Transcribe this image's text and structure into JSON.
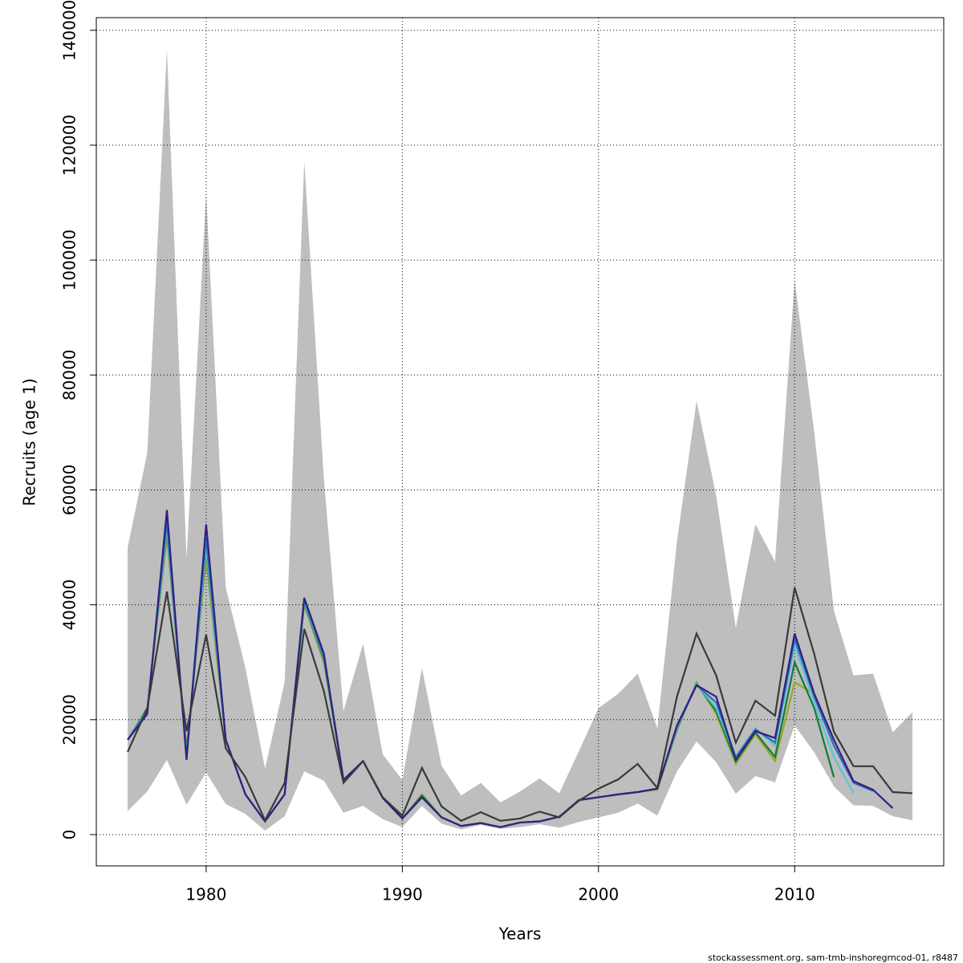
{
  "chart_data": {
    "type": "line",
    "xlabel": "Years",
    "ylabel": "Recruits (age 1)",
    "footer": "stockassessment.org, sam-tmb-inshoregrncod-01, r8487",
    "x": [
      1976,
      1977,
      1978,
      1979,
      1980,
      1981,
      1982,
      1983,
      1984,
      1985,
      1986,
      1987,
      1988,
      1989,
      1990,
      1991,
      1992,
      1993,
      1994,
      1995,
      1996,
      1997,
      1998,
      1999,
      2000,
      2001,
      2002,
      2003,
      2004,
      2005,
      2006,
      2007,
      2008,
      2009,
      2010,
      2011,
      2012,
      2013,
      2014,
      2015,
      2016
    ],
    "xlim": [
      1974.4,
      2017.6
    ],
    "xticks": [
      1980,
      1990,
      2000,
      2010
    ],
    "ylim": [
      -5450,
      142200
    ],
    "yticks": [
      0,
      20000,
      40000,
      60000,
      80000,
      100000,
      120000,
      140000
    ],
    "grid": true,
    "band": {
      "color": "#bebebe",
      "upper": [
        50000,
        66500,
        136700,
        48000,
        111500,
        43000,
        29000,
        11500,
        26500,
        117300,
        62000,
        21500,
        33200,
        14000,
        9500,
        29000,
        12000,
        6800,
        9000,
        5600,
        7500,
        9800,
        7200,
        14500,
        22000,
        24500,
        28000,
        18500,
        51000,
        75500,
        59000,
        36000,
        54000,
        47500,
        96500,
        70000,
        39000,
        27700,
        28000,
        17800,
        21300
      ],
      "lower": [
        4100,
        7500,
        13000,
        5200,
        10800,
        5300,
        3600,
        700,
        3200,
        11000,
        9400,
        3800,
        5000,
        2700,
        1300,
        5000,
        1900,
        900,
        1700,
        1000,
        1300,
        1800,
        1200,
        2200,
        3000,
        3800,
        5400,
        3300,
        11000,
        16200,
        12600,
        7100,
        10200,
        9100,
        19000,
        14300,
        8400,
        5100,
        5000,
        3200,
        2500
      ]
    },
    "series": [
      {
        "color": "#3a3a3a",
        "values": [
          14400,
          22000,
          42300,
          18000,
          34800,
          15000,
          10000,
          2500,
          9000,
          35800,
          25000,
          9000,
          12800,
          6500,
          3300,
          11600,
          4900,
          2400,
          3900,
          2400,
          2800,
          4000,
          3000,
          5900,
          8000,
          9600,
          12300,
          8100,
          24000,
          35000,
          27700,
          16000,
          23300,
          20700,
          43000,
          31400,
          17900,
          11900,
          11900,
          7400,
          7200
        ]
      },
      {
        "color": "#31207f",
        "values": [
          16500,
          21000,
          56500,
          13000,
          54000,
          16500,
          7000,
          2300,
          7000,
          41200,
          31500,
          9500,
          12800,
          6400,
          2800,
          6500,
          3000,
          1500,
          2000,
          1300,
          2100,
          2300,
          3100,
          6000,
          6500,
          7000,
          7400,
          8000,
          19000,
          26000,
          24000,
          13000,
          18000,
          16800,
          35000,
          24500,
          16500,
          9300,
          7800,
          4600,
          null
        ]
      },
      {
        "color": "#2a6fbf",
        "values": [
          16500,
          21500,
          54500,
          13500,
          51500,
          16500,
          7000,
          2300,
          7000,
          40800,
          31000,
          9500,
          12800,
          6400,
          2800,
          6500,
          3000,
          1500,
          2000,
          1300,
          2100,
          2300,
          3100,
          6000,
          6500,
          7000,
          7400,
          8000,
          18800,
          26000,
          23000,
          13500,
          18300,
          16000,
          34000,
          24000,
          15500,
          9000,
          7600,
          null,
          null
        ]
      },
      {
        "color": "#5cc3d4",
        "values": [
          16500,
          21800,
          53500,
          14000,
          50000,
          16500,
          7000,
          2300,
          7000,
          40500,
          30800,
          9500,
          12800,
          6400,
          2800,
          6500,
          3000,
          1500,
          2000,
          1300,
          2100,
          2300,
          3100,
          6000,
          6500,
          7000,
          7400,
          8000,
          18600,
          26200,
          22000,
          13500,
          18500,
          15500,
          33000,
          23000,
          13500,
          7200,
          null,
          null,
          null
        ]
      },
      {
        "color": "#127a3c",
        "values": [
          16500,
          22000,
          53000,
          14500,
          49500,
          16500,
          7000,
          2300,
          7000,
          40300,
          30500,
          9500,
          12800,
          6400,
          2800,
          6800,
          3000,
          1500,
          2000,
          1300,
          2100,
          2300,
          3100,
          6000,
          6500,
          7000,
          7400,
          8000,
          18400,
          26300,
          21500,
          12800,
          17800,
          13500,
          30000,
          22000,
          10000,
          null,
          null,
          null,
          null
        ]
      },
      {
        "color": "#94a824",
        "values": [
          16500,
          22000,
          52000,
          15000,
          48000,
          16500,
          7000,
          2300,
          7000,
          40000,
          30000,
          9500,
          12800,
          6400,
          2800,
          7000,
          3000,
          1500,
          2000,
          1300,
          2100,
          2300,
          3100,
          6000,
          6500,
          7000,
          7400,
          7800,
          18200,
          26500,
          21000,
          12300,
          17500,
          12800,
          26500,
          24500,
          null,
          null,
          null,
          null,
          null
        ]
      }
    ]
  }
}
